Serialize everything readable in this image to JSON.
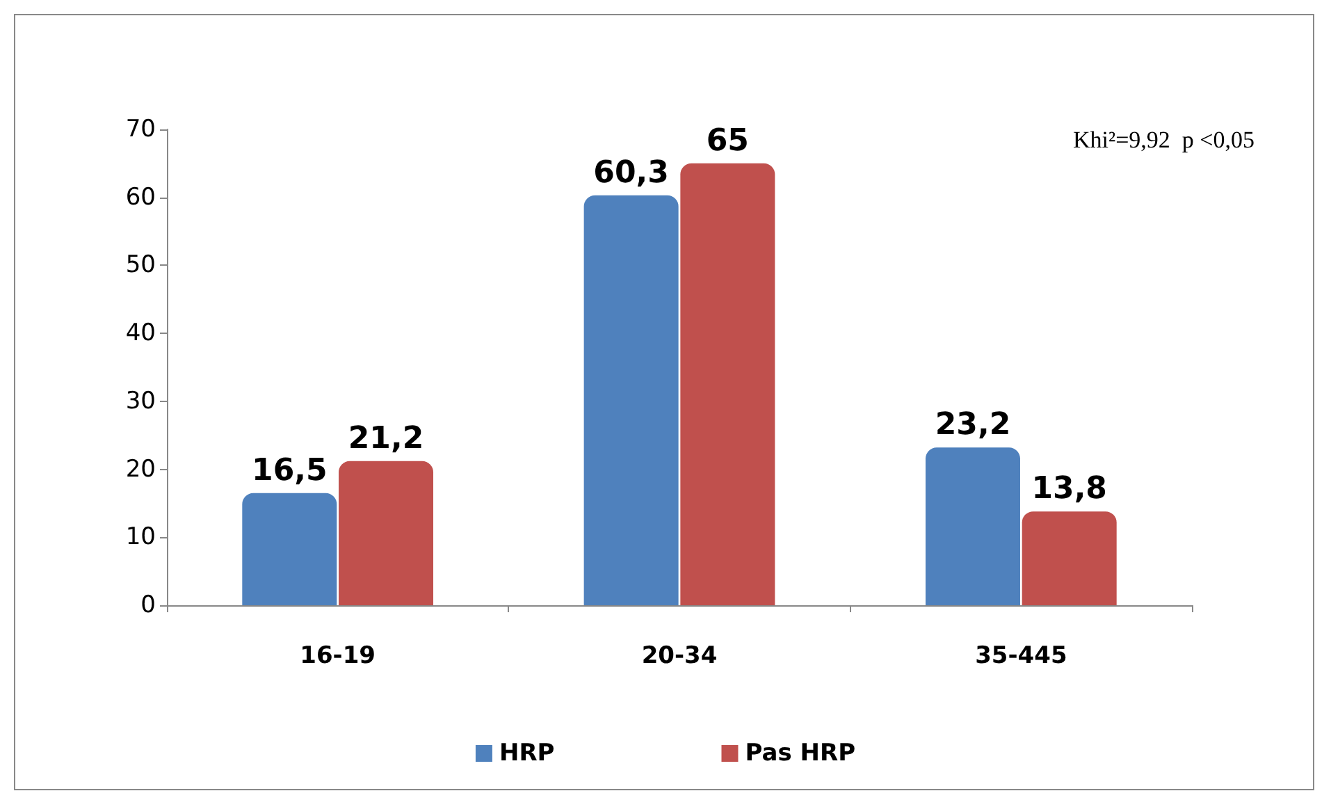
{
  "chart_data": {
    "type": "bar",
    "categories": [
      "16-19",
      "20-34",
      "35-445"
    ],
    "series": [
      {
        "name": "HRP",
        "color": "#4f81bd",
        "values": [
          16.5,
          60.3,
          23.2
        ],
        "value_labels": [
          "16,5",
          "60,3",
          "23,2"
        ]
      },
      {
        "name": "Pas HRP",
        "color": "#c0504d",
        "values": [
          21.2,
          65,
          13.8
        ],
        "value_labels": [
          "21,2",
          "65",
          "13,8"
        ]
      }
    ],
    "ylim": [
      0,
      70
    ],
    "yticks": [
      0,
      10,
      20,
      30,
      40,
      50,
      60,
      70
    ],
    "annotations": [
      "Khi²=9,92  p <0,05"
    ],
    "legend": "bottom",
    "grid": false
  }
}
